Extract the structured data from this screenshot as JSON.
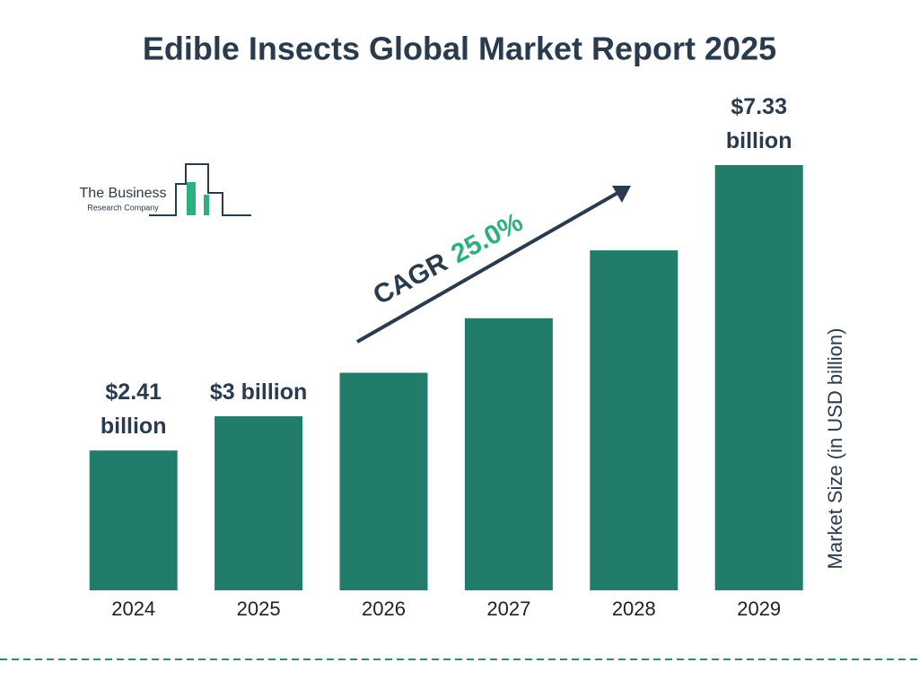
{
  "chart_data": {
    "type": "bar",
    "title": "Edible Insects Global Market Report 2025",
    "categories": [
      "2024",
      "2025",
      "2026",
      "2027",
      "2028",
      "2029"
    ],
    "values": [
      2.41,
      3,
      3.75,
      4.69,
      5.86,
      7.33
    ],
    "value_labels": [
      "$2.41 billion",
      "$3 billion",
      null,
      null,
      null,
      "$7.33 billion"
    ],
    "color": "#217c6c",
    "y_label": "Market Size (in USD billion)",
    "cagr_label": "CAGR",
    "cagr_value": "25.0%"
  },
  "logo": {
    "line1": "The Business",
    "line2": "Research Company"
  }
}
